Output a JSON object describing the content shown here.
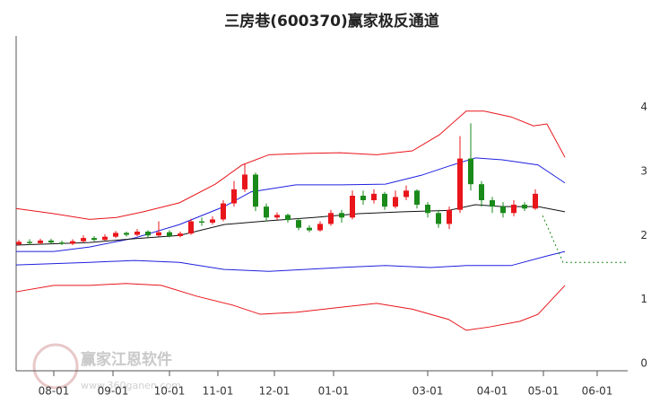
{
  "chart_data": {
    "type": "candlestick",
    "title": "三房巷(600370)赢家极反通道",
    "watermark": "赢家江恩软件",
    "watermark_url": "www.360ganen.com",
    "xlim": [
      0,
      227
    ],
    "ylim": [
      0,
      5.1
    ],
    "yticks": [
      0,
      1,
      2,
      3,
      4
    ],
    "xticks": [
      {
        "value": 14,
        "label": "08-01"
      },
      {
        "value": 36,
        "label": "09-01"
      },
      {
        "value": 57,
        "label": "10-01"
      },
      {
        "value": 75,
        "label": "11-01"
      },
      {
        "value": 96,
        "label": "12-01"
      },
      {
        "value": 118,
        "label": "01-01"
      },
      {
        "value": 153,
        "label": "03-01"
      },
      {
        "value": 177,
        "label": "04-01"
      },
      {
        "value": 196,
        "label": "05-01"
      },
      {
        "value": 216,
        "label": "06-01"
      }
    ],
    "up_color": "#e8151b",
    "down_color": "#1a8a1a",
    "x": [
      1,
      5,
      9,
      13,
      17,
      21,
      25,
      29,
      33,
      37,
      41,
      45,
      49,
      53,
      57,
      61,
      65,
      69,
      73,
      77,
      81,
      85,
      89,
      93,
      97,
      101,
      105,
      109,
      113,
      117,
      121,
      125,
      129,
      133,
      137,
      141,
      145,
      149,
      153,
      157,
      161,
      165,
      169,
      173,
      177,
      181,
      185,
      189,
      193
    ],
    "open": [
      1.86,
      1.9,
      1.88,
      1.92,
      1.89,
      1.87,
      1.91,
      1.96,
      1.93,
      1.98,
      2.04,
      2.01,
      2.06,
      2.0,
      2.05,
      1.99,
      2.03,
      2.22,
      2.2,
      2.25,
      2.5,
      2.72,
      2.95,
      2.45,
      2.28,
      2.32,
      2.24,
      2.12,
      2.08,
      2.18,
      2.35,
      2.28,
      2.62,
      2.55,
      2.65,
      2.45,
      2.6,
      2.7,
      2.48,
      2.35,
      2.18,
      2.4,
      3.2,
      2.8,
      2.55,
      2.45,
      2.35,
      2.48,
      2.42
    ],
    "high": [
      1.93,
      1.94,
      1.95,
      1.95,
      1.92,
      1.94,
      2.0,
      1.99,
      2.02,
      2.07,
      2.06,
      2.1,
      2.08,
      2.22,
      2.08,
      2.06,
      2.26,
      2.28,
      2.3,
      2.55,
      2.85,
      3.12,
      2.98,
      2.5,
      2.36,
      2.34,
      2.27,
      2.16,
      2.22,
      2.4,
      2.4,
      2.7,
      2.7,
      2.72,
      2.68,
      2.7,
      2.78,
      2.72,
      2.52,
      2.4,
      2.45,
      3.55,
      3.75,
      2.85,
      2.6,
      2.52,
      2.55,
      2.52,
      2.72
    ],
    "low": [
      1.84,
      1.85,
      1.86,
      1.87,
      1.85,
      1.85,
      1.89,
      1.91,
      1.92,
      1.96,
      1.98,
      1.99,
      1.97,
      1.98,
      1.97,
      1.97,
      2.01,
      2.15,
      2.17,
      2.22,
      2.45,
      2.68,
      2.38,
      2.22,
      2.24,
      2.2,
      2.08,
      2.05,
      2.06,
      2.15,
      2.2,
      2.25,
      2.48,
      2.5,
      2.4,
      2.42,
      2.55,
      2.42,
      2.28,
      2.12,
      2.1,
      2.35,
      2.7,
      2.45,
      2.35,
      2.28,
      2.3,
      2.38,
      2.4
    ],
    "close": [
      1.9,
      1.88,
      1.92,
      1.89,
      1.87,
      1.91,
      1.96,
      1.93,
      1.98,
      2.04,
      2.01,
      2.06,
      2.0,
      2.05,
      1.99,
      2.03,
      2.22,
      2.2,
      2.25,
      2.5,
      2.72,
      2.95,
      2.45,
      2.28,
      2.32,
      2.24,
      2.12,
      2.08,
      2.18,
      2.35,
      2.28,
      2.62,
      2.55,
      2.65,
      2.45,
      2.6,
      2.7,
      2.48,
      2.35,
      2.18,
      2.4,
      3.2,
      2.8,
      2.55,
      2.45,
      2.35,
      2.48,
      2.42,
      2.65
    ],
    "lines": [
      {
        "color": "#e8151b",
        "x": [
          0,
          14,
          27.3,
          37.3,
          47.3,
          60.7,
          74,
          84,
          94,
          107.3,
          120.7,
          134,
          147.3,
          157.3,
          167.3,
          174,
          184,
          192.3,
          197.3,
          204
        ],
        "values": [
          2.42,
          2.34,
          2.25,
          2.28,
          2.37,
          2.51,
          2.8,
          3.1,
          3.26,
          3.28,
          3.29,
          3.26,
          3.32,
          3.57,
          3.94,
          3.94,
          3.85,
          3.71,
          3.74,
          3.22
        ]
      },
      {
        "color": "#e8151b",
        "x": [
          0,
          14,
          27.3,
          40.7,
          54,
          67.3,
          80.7,
          90.7,
          104,
          120.7,
          134,
          147.3,
          160.7,
          167.3,
          175.7,
          187.3,
          194,
          204
        ],
        "values": [
          1.12,
          1.22,
          1.22,
          1.25,
          1.22,
          1.05,
          0.91,
          0.77,
          0.8,
          0.88,
          0.94,
          0.85,
          0.69,
          0.52,
          0.57,
          0.66,
          0.77,
          1.22
        ]
      },
      {
        "color": "#2020e0",
        "x": [
          0,
          14,
          27.3,
          44,
          60.7,
          77.3,
          87.3,
          104,
          120.7,
          137.3,
          150.7,
          160.7,
          170.7,
          180.7,
          194,
          204
        ],
        "values": [
          1.75,
          1.75,
          1.82,
          1.96,
          2.17,
          2.45,
          2.68,
          2.79,
          2.79,
          2.8,
          2.94,
          3.08,
          3.21,
          3.18,
          3.1,
          2.82
        ]
      },
      {
        "color": "#2020e0",
        "x": [
          0,
          27.3,
          44,
          60.7,
          77.3,
          94,
          120.7,
          137.3,
          154,
          167.3,
          184,
          197.3,
          204
        ],
        "values": [
          1.54,
          1.58,
          1.61,
          1.58,
          1.47,
          1.44,
          1.5,
          1.53,
          1.5,
          1.53,
          1.53,
          1.68,
          1.75
        ]
      },
      {
        "color": "#111111",
        "x": [
          0,
          27.3,
          44,
          60.7,
          77.3,
          94,
          110.7,
          127.3,
          144,
          160.7,
          170.7,
          180.7,
          194,
          204
        ],
        "values": [
          1.85,
          1.89,
          1.95,
          2.0,
          2.17,
          2.23,
          2.28,
          2.34,
          2.37,
          2.39,
          2.48,
          2.45,
          2.45,
          2.37
        ]
      },
      {
        "color": "#1a8a1a",
        "dashed": true,
        "x": [
          195.7,
          203.3,
          227
        ],
        "values": [
          2.31,
          1.58,
          1.58
        ]
      }
    ]
  }
}
